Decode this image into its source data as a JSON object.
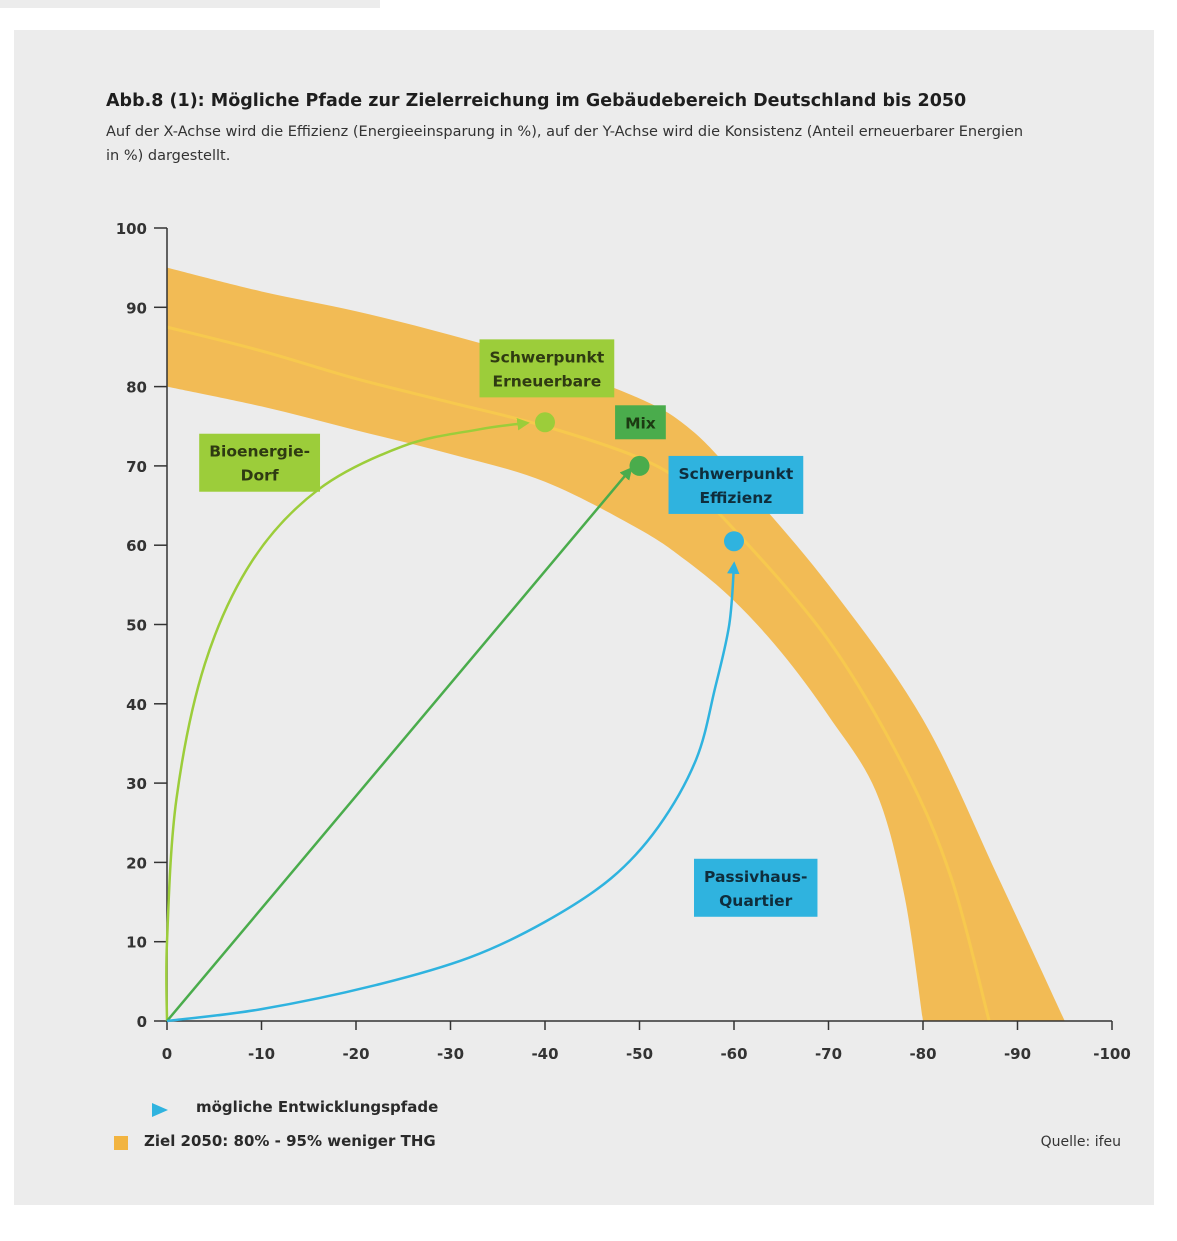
{
  "figure": {
    "title": "Abb.8 (1): Mögliche Pfade zur Zielerreichung im Gebäudebereich Deutschland bis 2050",
    "subtitle": "Auf der X-Achse wird die Effizienz (Energieeinsparung in %), auf der Y-Achse wird die Konsistenz (Anteil erneuerbarer Energien in %) dargestellt.",
    "source": "Quelle: ifeu"
  },
  "legend": {
    "paths_label": "mögliche Entwicklungspfade",
    "target_label": "Ziel 2050: 80% - 95% weniger THG"
  },
  "colors": {
    "band": "#f2b440",
    "band_center": "#f7c94e",
    "light_green": "#9ccd3a",
    "green": "#4aac4c",
    "blue": "#2fb3df",
    "axis": "#333333"
  },
  "chart_data": {
    "type": "line",
    "xlim": [
      0,
      -100
    ],
    "ylim": [
      0,
      100
    ],
    "x_ticks": [
      "0",
      "-10",
      "-20",
      "-30",
      "-40",
      "-50",
      "-60",
      "-70",
      "-80",
      "-90",
      "-100"
    ],
    "y_ticks": [
      "0",
      "10",
      "20",
      "30",
      "40",
      "50",
      "60",
      "70",
      "80",
      "90",
      "100"
    ],
    "band": {
      "upper": [
        [
          0,
          95
        ],
        [
          -10,
          92
        ],
        [
          -20,
          89.5
        ],
        [
          -30,
          86.5
        ],
        [
          -40,
          83
        ],
        [
          -50,
          78.5
        ],
        [
          -55,
          75
        ],
        [
          -60,
          69
        ],
        [
          -70,
          55
        ],
        [
          -80,
          38
        ],
        [
          -88,
          18
        ],
        [
          -95,
          0
        ]
      ],
      "center": [
        [
          0,
          87.5
        ],
        [
          -10,
          84.5
        ],
        [
          -20,
          81
        ],
        [
          -30,
          78
        ],
        [
          -40,
          75
        ],
        [
          -50,
          71
        ],
        [
          -55,
          67.5
        ],
        [
          -60,
          62
        ],
        [
          -70,
          48
        ],
        [
          -78,
          32
        ],
        [
          -83,
          18
        ],
        [
          -87,
          0
        ]
      ],
      "lower": [
        [
          0,
          80
        ],
        [
          -10,
          77.5
        ],
        [
          -20,
          74.5
        ],
        [
          -30,
          71.5
        ],
        [
          -40,
          68
        ],
        [
          -50,
          62
        ],
        [
          -55,
          58
        ],
        [
          -60,
          53
        ],
        [
          -65,
          46.5
        ],
        [
          -70,
          38.5
        ],
        [
          -75,
          29
        ],
        [
          -78,
          16
        ],
        [
          -80,
          0
        ]
      ]
    },
    "series": [
      {
        "name": "Bioenergie-Dorf",
        "color": "light_green",
        "points": [
          [
            0,
            0
          ],
          [
            0,
            10
          ],
          [
            -1,
            28
          ],
          [
            -4,
            45
          ],
          [
            -9,
            58
          ],
          [
            -16,
            67
          ],
          [
            -25,
            72.5
          ],
          [
            -33,
            74.6
          ],
          [
            -38,
            75.4
          ]
        ]
      },
      {
        "name": "Mix",
        "color": "green",
        "points": [
          [
            0,
            0
          ],
          [
            -49,
            69.5
          ]
        ]
      },
      {
        "name": "Passivhaus-Quartier",
        "color": "blue",
        "points": [
          [
            0,
            0
          ],
          [
            -10,
            1.5
          ],
          [
            -22,
            4.5
          ],
          [
            -32,
            8
          ],
          [
            -40,
            12.5
          ],
          [
            -47,
            18
          ],
          [
            -52,
            24.5
          ],
          [
            -56,
            33
          ],
          [
            -58,
            42
          ],
          [
            -59.5,
            50
          ],
          [
            -60,
            57.5
          ]
        ]
      }
    ],
    "markers": [
      {
        "name": "Schwerpunkt Erneuerbare",
        "x": -40,
        "y": 75.5,
        "color": "light_green"
      },
      {
        "name": "Mix",
        "x": -50,
        "y": 70,
        "color": "green"
      },
      {
        "name": "Schwerpunkt Effizienz",
        "x": -60,
        "y": 60.5,
        "color": "blue"
      }
    ],
    "annotations": [
      {
        "lines": [
          "Schwerpunkt",
          "Erneuerbare"
        ],
        "x": -40.2,
        "y": 82.3,
        "color": "light_green",
        "text_color": "#2f3a12"
      },
      {
        "lines": [
          "Mix"
        ],
        "x": -50.1,
        "y": 75.5,
        "color": "green",
        "text_color": "#1c3a12"
      },
      {
        "lines": [
          "Schwerpunkt",
          "Effizienz"
        ],
        "x": -60.2,
        "y": 67.6,
        "color": "blue",
        "text_color": "#0f2d3c"
      },
      {
        "lines": [
          "Bioenergie-",
          "Dorf"
        ],
        "x": -9.8,
        "y": 70.4,
        "color": "light_green",
        "text_color": "#2f3a12"
      },
      {
        "lines": [
          "Passivhaus-",
          "Quartier"
        ],
        "x": -62.3,
        "y": 16.8,
        "color": "blue",
        "text_color": "#0f2d3c"
      }
    ]
  }
}
